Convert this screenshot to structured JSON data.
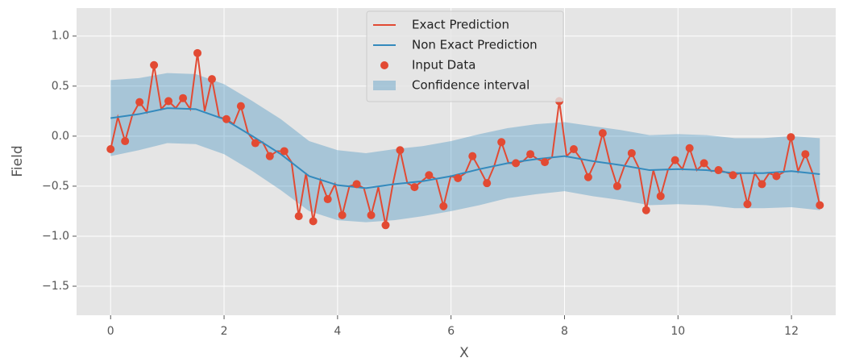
{
  "chart_data": {
    "type": "line",
    "x_label": "X",
    "y_label": "Field",
    "xlim": [
      -0.6,
      12.78
    ],
    "ylim": [
      -1.79,
      1.28
    ],
    "xticks": [
      0,
      2,
      4,
      6,
      8,
      10,
      12
    ],
    "yticks": [
      {
        "value": -1.5,
        "label": "−1.5"
      },
      {
        "value": -1,
        "label": "−1.0"
      },
      {
        "value": -0.5,
        "label": "−0.5"
      },
      {
        "value": 0,
        "label": "0.0"
      },
      0.5,
      {
        "value": 1,
        "label": "1.0"
      }
    ],
    "grid": true,
    "legend": "upper center",
    "series": [
      {
        "name": "Exact Prediction",
        "type": "line",
        "color": "#E24A33",
        "x": [
          0,
          0.128,
          0.255,
          0.383,
          0.51,
          0.638,
          0.765,
          0.893,
          1.02,
          1.148,
          1.276,
          1.403,
          1.531,
          1.658,
          1.786,
          1.913,
          2.041,
          2.168,
          2.296,
          2.423,
          2.551,
          2.679,
          2.806,
          2.934,
          3.061,
          3.189,
          3.316,
          3.444,
          3.571,
          3.699,
          3.827,
          3.954,
          4.082,
          4.209,
          4.337,
          4.464,
          4.592,
          4.719,
          4.847,
          4.974,
          5.102,
          5.23,
          5.357,
          5.485,
          5.612,
          5.74,
          5.867,
          5.995,
          6.122,
          6.25,
          6.378,
          6.505,
          6.633,
          6.76,
          6.888,
          7.015,
          7.143,
          7.27,
          7.398,
          7.526,
          7.653,
          7.781,
          7.908,
          8.036,
          8.163,
          8.291,
          8.418,
          8.546,
          8.673,
          8.801,
          8.929,
          9.056,
          9.184,
          9.311,
          9.439,
          9.566,
          9.694,
          9.821,
          9.949,
          10.077,
          10.204,
          10.332,
          10.459,
          10.587,
          10.714,
          10.842,
          10.969,
          11.097,
          11.224,
          11.352,
          11.48,
          11.607,
          11.735,
          11.862,
          11.99,
          12.117,
          12.245,
          12.372,
          12.5
        ],
        "values": [
          -0.13,
          0.19,
          -0.05,
          0.21,
          0.34,
          0.24,
          0.71,
          0.27,
          0.35,
          0.28,
          0.38,
          0.27,
          0.83,
          0.25,
          0.57,
          0.19,
          0.17,
          0.12,
          0.3,
          0.03,
          -0.07,
          -0.06,
          -0.2,
          -0.15,
          -0.15,
          -0.26,
          -0.8,
          -0.37,
          -0.85,
          -0.44,
          -0.63,
          -0.48,
          -0.79,
          -0.5,
          -0.48,
          -0.52,
          -0.79,
          -0.51,
          -0.89,
          -0.48,
          -0.14,
          -0.47,
          -0.51,
          -0.45,
          -0.39,
          -0.43,
          -0.7,
          -0.4,
          -0.42,
          -0.37,
          -0.2,
          -0.33,
          -0.47,
          -0.3,
          -0.06,
          -0.27,
          -0.27,
          -0.25,
          -0.18,
          -0.23,
          -0.26,
          -0.21,
          0.35,
          -0.2,
          -0.13,
          -0.23,
          -0.41,
          -0.25,
          0.03,
          -0.27,
          -0.5,
          -0.3,
          -0.17,
          -0.32,
          -0.74,
          -0.34,
          -0.6,
          -0.34,
          -0.24,
          -0.33,
          -0.12,
          -0.34,
          -0.27,
          -0.35,
          -0.34,
          -0.36,
          -0.39,
          -0.37,
          -0.68,
          -0.37,
          -0.48,
          -0.37,
          -0.4,
          -0.36,
          -0.01,
          -0.35,
          -0.18,
          -0.37,
          -0.69
        ]
      },
      {
        "name": "Non Exact Prediction",
        "type": "line",
        "color": "#348ABD",
        "x": [
          0,
          0.5,
          1,
          1.5,
          2,
          2.5,
          3,
          3.5,
          4,
          4.5,
          5,
          5.5,
          6,
          6.5,
          7,
          7.5,
          8,
          8.5,
          9,
          9.5,
          10,
          10.5,
          11,
          11.5,
          12,
          12.5
        ],
        "values": [
          0.18,
          0.22,
          0.28,
          0.27,
          0.17,
          0.0,
          -0.18,
          -0.4,
          -0.49,
          -0.52,
          -0.48,
          -0.45,
          -0.4,
          -0.33,
          -0.27,
          -0.23,
          -0.2,
          -0.25,
          -0.29,
          -0.34,
          -0.33,
          -0.34,
          -0.37,
          -0.37,
          -0.35,
          -0.38
        ]
      },
      {
        "name": "Input Data",
        "type": "scatter",
        "color": "#E24A33",
        "x": [
          0,
          0.255,
          0.51,
          0.765,
          1.02,
          1.276,
          1.531,
          1.786,
          2.041,
          2.296,
          2.551,
          2.806,
          3.061,
          3.316,
          3.571,
          3.827,
          4.082,
          4.337,
          4.592,
          4.847,
          5.102,
          5.357,
          5.612,
          5.867,
          6.122,
          6.378,
          6.633,
          6.888,
          7.143,
          7.398,
          7.653,
          7.908,
          8.163,
          8.418,
          8.673,
          8.929,
          9.184,
          9.439,
          9.694,
          9.949,
          10.204,
          10.459,
          10.714,
          10.969,
          11.224,
          11.48,
          11.735,
          11.99,
          12.245,
          12.5
        ],
        "values": [
          -0.13,
          -0.05,
          0.34,
          0.71,
          0.35,
          0.38,
          0.83,
          0.57,
          0.17,
          0.3,
          -0.07,
          -0.2,
          -0.15,
          -0.8,
          -0.85,
          -0.63,
          -0.79,
          -0.48,
          -0.79,
          -0.89,
          -0.14,
          -0.51,
          -0.39,
          -0.7,
          -0.42,
          -0.2,
          -0.47,
          -0.06,
          -0.27,
          -0.18,
          -0.26,
          0.35,
          -0.13,
          -0.41,
          0.03,
          -0.5,
          -0.17,
          -0.74,
          -0.6,
          -0.24,
          -0.12,
          -0.27,
          -0.34,
          -0.39,
          -0.68,
          -0.48,
          -0.4,
          -0.01,
          -0.18,
          -0.69
        ]
      },
      {
        "name": "Confidence interval",
        "type": "band",
        "color": "#348ABD",
        "x": [
          0,
          0.5,
          1,
          1.5,
          2,
          2.5,
          3,
          3.5,
          4,
          4.5,
          5,
          5.5,
          6,
          6.5,
          7,
          7.5,
          8,
          8.5,
          9,
          9.5,
          10,
          10.5,
          11,
          11.5,
          12,
          12.5
        ],
        "lower": [
          -0.2,
          -0.14,
          -0.07,
          -0.08,
          -0.18,
          -0.35,
          -0.54,
          -0.75,
          -0.84,
          -0.86,
          -0.84,
          -0.8,
          -0.75,
          -0.69,
          -0.62,
          -0.58,
          -0.55,
          -0.6,
          -0.64,
          -0.69,
          -0.68,
          -0.69,
          -0.72,
          -0.72,
          -0.71,
          -0.74
        ],
        "upper": [
          0.56,
          0.58,
          0.63,
          0.62,
          0.52,
          0.35,
          0.17,
          -0.05,
          -0.14,
          -0.17,
          -0.13,
          -0.1,
          -0.05,
          0.02,
          0.08,
          0.12,
          0.14,
          0.1,
          0.06,
          0.01,
          0.02,
          0.01,
          -0.02,
          -0.02,
          0.0,
          -0.02
        ]
      }
    ]
  }
}
